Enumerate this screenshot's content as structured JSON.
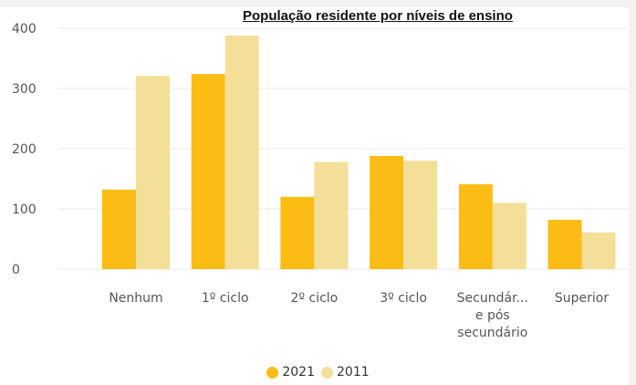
{
  "chart_data": {
    "type": "bar",
    "title": "População residente por níveis de ensino",
    "categories": [
      "Nenhum",
      "1º ciclo",
      "2º ciclo",
      "3º ciclo",
      "Secundár... e pós secundário",
      "Superior"
    ],
    "category_label_lines": [
      [
        "Nenhum"
      ],
      [
        "1º ciclo"
      ],
      [
        "2º ciclo"
      ],
      [
        "3º ciclo"
      ],
      [
        "Secundár...",
        "e pós",
        "secundário"
      ],
      [
        "Superior"
      ]
    ],
    "series": [
      {
        "name": "2021",
        "color": "#fbbc13",
        "values": [
          132,
          324,
          120,
          188,
          141,
          82
        ]
      },
      {
        "name": "2011",
        "color": "#f3df97",
        "values": [
          321,
          388,
          178,
          180,
          110,
          61
        ]
      }
    ],
    "ylim": [
      0,
      400
    ],
    "yticks": [
      0,
      100,
      200,
      300,
      400
    ],
    "grid": true,
    "legend_position": "bottom-center",
    "xlabel": "",
    "ylabel": ""
  }
}
